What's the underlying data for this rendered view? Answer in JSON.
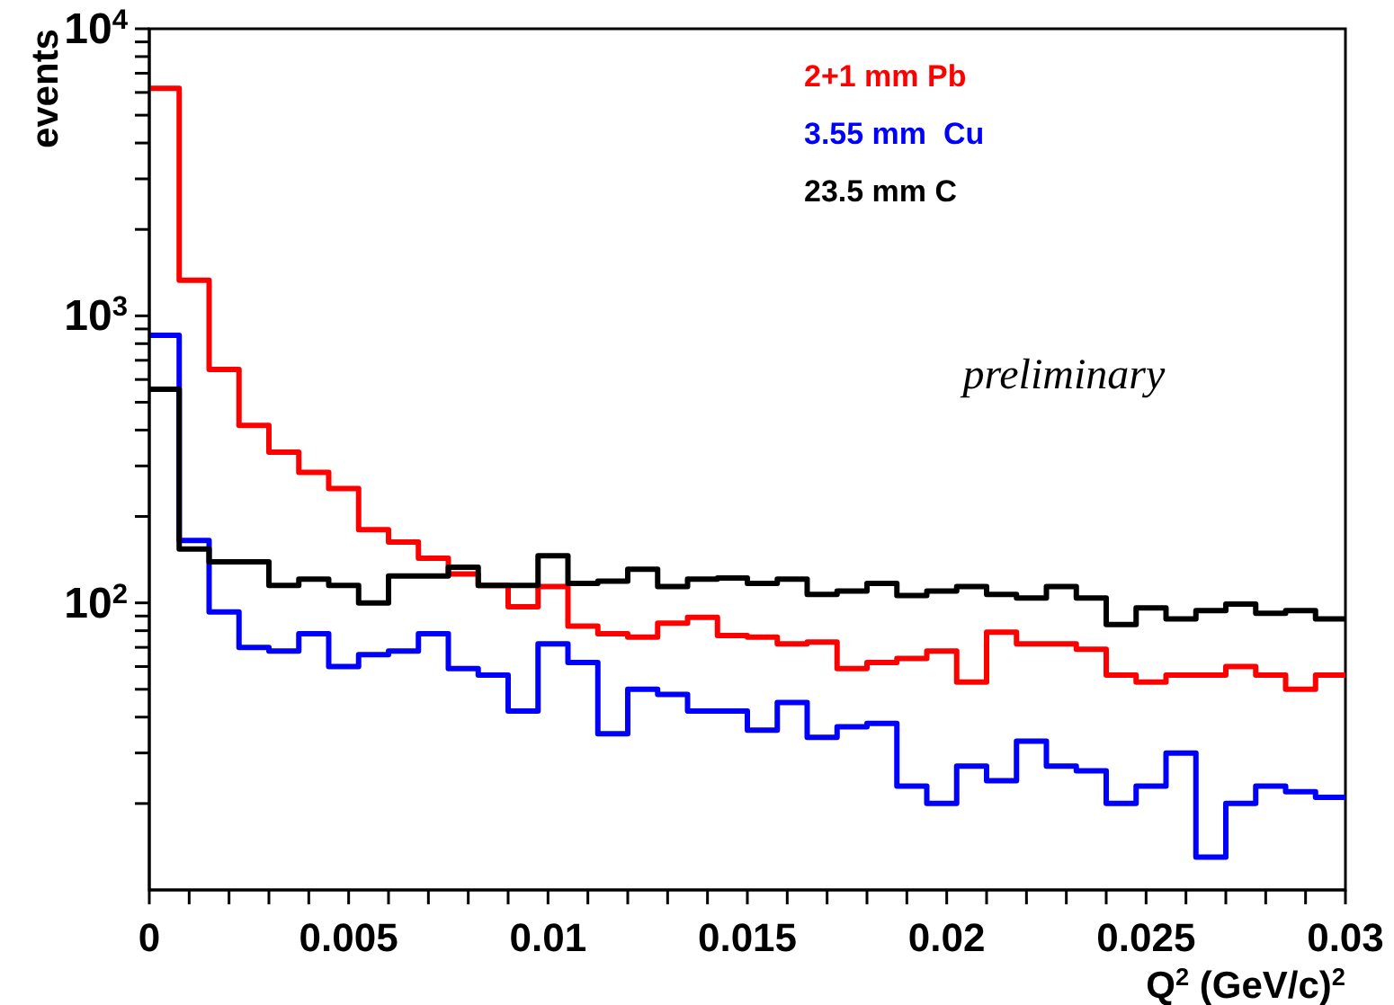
{
  "chart_data": {
    "type": "histogram",
    "xlabel": "Q$^{2}$ (GeV/c)$^{2}$",
    "ylabel": "events",
    "log": "y",
    "legend": "top right",
    "annotations": [
      "preliminary"
    ],
    "bins": [
      0,
      0.00075,
      0.0015,
      0.00225,
      0.003,
      0.00375,
      0.0045,
      0.00525,
      0.006,
      0.00675,
      0.0075,
      0.00825,
      0.009,
      0.00975,
      0.0105,
      0.01125,
      0.012,
      0.01275,
      0.0135,
      0.01425,
      0.015,
      0.01575,
      0.0165,
      0.01725,
      0.018,
      0.01875,
      0.0195,
      0.02025,
      0.021,
      0.02175,
      0.0225,
      0.02325,
      0.024,
      0.02475,
      0.0255,
      0.02625,
      0.027,
      0.02775,
      0.0285,
      0.02925,
      0.03
    ],
    "xlim": [
      0,
      0.03
    ],
    "xticks": [
      0,
      {
        "value": 0.001,
        "label": null
      },
      {
        "value": 0.002,
        "label": null
      },
      {
        "value": 0.003,
        "label": null
      },
      {
        "value": 0.004,
        "label": null
      },
      0.005,
      {
        "value": 0.006,
        "label": null
      },
      {
        "value": 0.007,
        "label": null
      },
      {
        "value": 0.008,
        "label": null
      },
      {
        "value": 0.009,
        "label": null
      },
      0.01,
      {
        "value": 0.011,
        "label": null
      },
      {
        "value": 0.012,
        "label": null
      },
      {
        "value": 0.013,
        "label": null
      },
      {
        "value": 0.014,
        "label": null
      },
      0.015,
      {
        "value": 0.016,
        "label": null
      },
      {
        "value": 0.017,
        "label": null
      },
      {
        "value": 0.018,
        "label": null
      },
      {
        "value": 0.019,
        "label": null
      },
      0.02,
      {
        "value": 0.021,
        "label": null
      },
      {
        "value": 0.022,
        "label": null
      },
      {
        "value": 0.023,
        "label": null
      },
      {
        "value": 0.024,
        "label": null
      },
      0.025,
      {
        "value": 0.026,
        "label": null
      },
      {
        "value": 0.027,
        "label": null
      },
      {
        "value": 0.028,
        "label": null
      },
      {
        "value": 0.029,
        "label": null
      },
      0.03
    ],
    "ylim": [
      10,
      10000
    ],
    "yticks": [
      {
        "value": 20,
        "label": null
      },
      {
        "value": 30,
        "label": null
      },
      {
        "value": 40,
        "label": null
      },
      {
        "value": 50,
        "label": null
      },
      {
        "value": 60,
        "label": null
      },
      {
        "value": 70,
        "label": null
      },
      {
        "value": 80,
        "label": null
      },
      {
        "value": 90,
        "label": null
      },
      {
        "value": 100,
        "label": "10$^{2}$"
      },
      {
        "value": 200,
        "label": null
      },
      {
        "value": 300,
        "label": null
      },
      {
        "value": 400,
        "label": null
      },
      {
        "value": 500,
        "label": null
      },
      {
        "value": 600,
        "label": null
      },
      {
        "value": 700,
        "label": null
      },
      {
        "value": 800,
        "label": null
      },
      {
        "value": 900,
        "label": null
      },
      {
        "value": 1000,
        "label": "10$^{3}$"
      },
      {
        "value": 2000,
        "label": null
      },
      {
        "value": 3000,
        "label": null
      },
      {
        "value": 4000,
        "label": null
      },
      {
        "value": 5000,
        "label": null
      },
      {
        "value": 6000,
        "label": null
      },
      {
        "value": 7000,
        "label": null
      },
      {
        "value": 8000,
        "label": null
      },
      {
        "value": 9000,
        "label": null
      },
      {
        "value": 10000,
        "label": "10$^{4}$"
      }
    ],
    "series": [
      {
        "name": "2+1 mm Pb",
        "color": "#ff0000",
        "values": [
          6200,
          1330,
          650,
          415,
          335,
          285,
          250,
          180,
          163,
          143,
          126,
          115,
          97,
          114,
          83,
          78,
          76,
          85,
          89,
          77,
          76,
          72,
          73,
          59,
          62,
          64,
          68,
          53,
          79,
          72,
          72,
          69,
          56,
          53,
          56,
          56,
          60,
          56,
          50,
          56
        ]
      },
      {
        "name": "3.55 mm  Cu",
        "color": "#0000ff",
        "values": [
          855,
          165,
          93,
          70,
          68,
          78,
          60,
          66,
          68,
          78,
          59,
          56,
          42,
          72,
          62,
          35,
          50,
          48,
          42,
          42,
          36,
          45,
          34,
          37,
          38,
          23,
          20,
          27,
          24,
          33,
          27,
          26,
          20,
          23,
          30,
          13,
          20,
          23,
          22,
          21
        ]
      },
      {
        "name": "23.5 mm C",
        "color": "#000000",
        "values": [
          555,
          154,
          139,
          139,
          115,
          121,
          115,
          100,
          124,
          124,
          133,
          115,
          115,
          146,
          117,
          119,
          131,
          114,
          121,
          122,
          117,
          121,
          107,
          110,
          117,
          106,
          110,
          114,
          107,
          104,
          114,
          104,
          84,
          96,
          88,
          94,
          99,
          92,
          94,
          88
        ]
      }
    ]
  }
}
